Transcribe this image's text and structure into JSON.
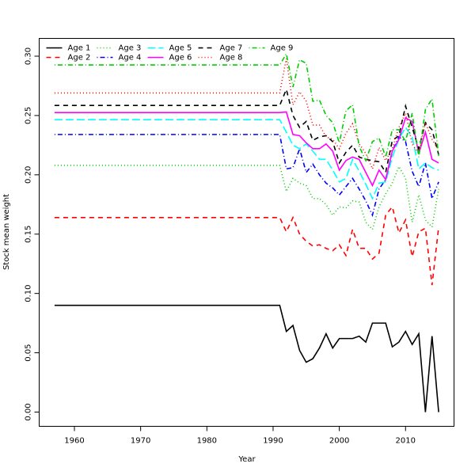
{
  "chart_data": {
    "type": "line",
    "x_label": "Year",
    "y_label": "Stock mean weight",
    "x": [
      1957,
      1958,
      1959,
      1960,
      1961,
      1962,
      1963,
      1964,
      1965,
      1966,
      1967,
      1968,
      1969,
      1970,
      1971,
      1972,
      1973,
      1974,
      1975,
      1976,
      1977,
      1978,
      1979,
      1980,
      1981,
      1982,
      1983,
      1984,
      1985,
      1986,
      1987,
      1988,
      1989,
      1990,
      1991,
      1992,
      1993,
      1994,
      1995,
      1996,
      1997,
      1998,
      1999,
      2000,
      2001,
      2002,
      2003,
      2004,
      2005,
      2006,
      2007,
      2008,
      2009,
      2010,
      2011,
      2012,
      2013,
      2014,
      2015
    ],
    "xlim": [
      1954.68,
      2017.32
    ],
    "xticks": [
      1960,
      1970,
      1980,
      1990,
      2000,
      2010
    ],
    "ylim": [
      -0.012,
      0.315
    ],
    "yticks": [
      {
        "value": 0,
        "label": "0.00"
      },
      {
        "value": 0.05,
        "label": "0.05"
      },
      {
        "value": 0.1,
        "label": "0.10"
      },
      {
        "value": 0.15,
        "label": "0.15"
      },
      {
        "value": 0.2,
        "label": "0.20"
      },
      {
        "value": 0.25,
        "label": "0.25"
      },
      {
        "value": 0.3,
        "label": "0.30"
      }
    ],
    "legend": "top-left",
    "series": [
      {
        "name": "Age 1",
        "color": "#000000",
        "linestyle": "solid",
        "values": [
          0.09,
          0.09,
          0.09,
          0.09,
          0.09,
          0.09,
          0.09,
          0.09,
          0.09,
          0.09,
          0.09,
          0.09,
          0.09,
          0.09,
          0.09,
          0.09,
          0.09,
          0.09,
          0.09,
          0.09,
          0.09,
          0.09,
          0.09,
          0.09,
          0.09,
          0.09,
          0.09,
          0.09,
          0.09,
          0.09,
          0.09,
          0.09,
          0.09,
          0.09,
          0.09,
          0.068,
          0.073,
          0.052,
          0.042,
          0.045,
          0.054,
          0.066,
          0.054,
          0.062,
          0.062,
          0.062,
          0.064,
          0.059,
          0.075,
          0.075,
          0.075,
          0.055,
          0.059,
          0.068,
          0.057,
          0.066,
          0.0,
          0.064,
          0.0
        ]
      },
      {
        "name": "Age 2",
        "color": "#ff0000",
        "linestyle": "dashed",
        "values": [
          0.164,
          0.164,
          0.164,
          0.164,
          0.164,
          0.164,
          0.164,
          0.164,
          0.164,
          0.164,
          0.164,
          0.164,
          0.164,
          0.164,
          0.164,
          0.164,
          0.164,
          0.164,
          0.164,
          0.164,
          0.164,
          0.164,
          0.164,
          0.164,
          0.164,
          0.164,
          0.164,
          0.164,
          0.164,
          0.164,
          0.164,
          0.164,
          0.164,
          0.164,
          0.164,
          0.152,
          0.164,
          0.15,
          0.144,
          0.14,
          0.141,
          0.138,
          0.136,
          0.141,
          0.132,
          0.154,
          0.138,
          0.138,
          0.129,
          0.134,
          0.166,
          0.173,
          0.151,
          0.162,
          0.131,
          0.152,
          0.155,
          0.107,
          0.156
        ]
      },
      {
        "name": "Age 3",
        "color": "#00cd00",
        "linestyle": "dotted",
        "values": [
          0.208,
          0.208,
          0.208,
          0.208,
          0.208,
          0.208,
          0.208,
          0.208,
          0.208,
          0.208,
          0.208,
          0.208,
          0.208,
          0.208,
          0.208,
          0.208,
          0.208,
          0.208,
          0.208,
          0.208,
          0.208,
          0.208,
          0.208,
          0.208,
          0.208,
          0.208,
          0.208,
          0.208,
          0.208,
          0.208,
          0.208,
          0.208,
          0.208,
          0.208,
          0.208,
          0.186,
          0.197,
          0.193,
          0.191,
          0.18,
          0.18,
          0.175,
          0.166,
          0.173,
          0.172,
          0.178,
          0.177,
          0.16,
          0.154,
          0.173,
          0.184,
          0.193,
          0.207,
          0.197,
          0.16,
          0.183,
          0.162,
          0.156,
          0.188
        ]
      },
      {
        "name": "Age 4",
        "color": "#0000ff",
        "linestyle": "dotdash",
        "values": [
          0.234,
          0.234,
          0.234,
          0.234,
          0.234,
          0.234,
          0.234,
          0.234,
          0.234,
          0.234,
          0.234,
          0.234,
          0.234,
          0.234,
          0.234,
          0.234,
          0.234,
          0.234,
          0.234,
          0.234,
          0.234,
          0.234,
          0.234,
          0.234,
          0.234,
          0.234,
          0.234,
          0.234,
          0.234,
          0.234,
          0.234,
          0.234,
          0.234,
          0.234,
          0.234,
          0.205,
          0.206,
          0.222,
          0.202,
          0.209,
          0.2,
          0.193,
          0.189,
          0.183,
          0.19,
          0.197,
          0.188,
          0.178,
          0.166,
          0.188,
          0.196,
          0.22,
          0.232,
          0.228,
          0.203,
          0.19,
          0.21,
          0.18,
          0.194
        ]
      },
      {
        "name": "Age 5",
        "color": "#00ffff",
        "linestyle": "longdash",
        "values": [
          0.2465,
          0.2465,
          0.2465,
          0.2465,
          0.2465,
          0.2465,
          0.2465,
          0.2465,
          0.2465,
          0.2465,
          0.2465,
          0.2465,
          0.2465,
          0.2465,
          0.2465,
          0.2465,
          0.2465,
          0.2465,
          0.2465,
          0.2465,
          0.2465,
          0.2465,
          0.2465,
          0.2465,
          0.2465,
          0.2465,
          0.2465,
          0.2465,
          0.2465,
          0.2465,
          0.2465,
          0.2465,
          0.2465,
          0.2465,
          0.2465,
          0.236,
          0.225,
          0.222,
          0.226,
          0.22,
          0.213,
          0.213,
          0.204,
          0.194,
          0.197,
          0.213,
          0.203,
          0.192,
          0.18,
          0.193,
          0.194,
          0.215,
          0.23,
          0.24,
          0.232,
          0.205,
          0.21,
          0.206,
          0.204
        ]
      },
      {
        "name": "Age 6",
        "color": "#ff00ff",
        "linestyle": "solid",
        "values": [
          0.2525,
          0.2525,
          0.2525,
          0.2525,
          0.2525,
          0.2525,
          0.2525,
          0.2525,
          0.2525,
          0.2525,
          0.2525,
          0.2525,
          0.2525,
          0.2525,
          0.2525,
          0.2525,
          0.2525,
          0.2525,
          0.2525,
          0.2525,
          0.2525,
          0.2525,
          0.2525,
          0.2525,
          0.2525,
          0.2525,
          0.2525,
          0.2525,
          0.2525,
          0.2525,
          0.2525,
          0.2525,
          0.2525,
          0.2525,
          0.2525,
          0.253,
          0.234,
          0.233,
          0.227,
          0.222,
          0.222,
          0.226,
          0.22,
          0.204,
          0.212,
          0.215,
          0.213,
          0.202,
          0.191,
          0.204,
          0.196,
          0.22,
          0.23,
          0.248,
          0.245,
          0.218,
          0.236,
          0.213,
          0.21
        ]
      },
      {
        "name": "Age 7",
        "color": "#000000",
        "linestyle": "dashed",
        "values": [
          0.2585,
          0.2585,
          0.2585,
          0.2585,
          0.2585,
          0.2585,
          0.2585,
          0.2585,
          0.2585,
          0.2585,
          0.2585,
          0.2585,
          0.2585,
          0.2585,
          0.2585,
          0.2585,
          0.2585,
          0.2585,
          0.2585,
          0.2585,
          0.2585,
          0.2585,
          0.2585,
          0.2585,
          0.2585,
          0.2585,
          0.2585,
          0.2585,
          0.2585,
          0.2585,
          0.2585,
          0.2585,
          0.2585,
          0.2585,
          0.2585,
          0.272,
          0.25,
          0.24,
          0.245,
          0.229,
          0.232,
          0.233,
          0.228,
          0.21,
          0.219,
          0.225,
          0.215,
          0.213,
          0.212,
          0.211,
          0.202,
          0.229,
          0.233,
          0.258,
          0.24,
          0.222,
          0.244,
          0.238,
          0.217
        ]
      },
      {
        "name": "Age 8",
        "color": "#ff0000",
        "linestyle": "dotted",
        "values": [
          0.269,
          0.269,
          0.269,
          0.269,
          0.269,
          0.269,
          0.269,
          0.269,
          0.269,
          0.269,
          0.269,
          0.269,
          0.269,
          0.269,
          0.269,
          0.269,
          0.269,
          0.269,
          0.269,
          0.269,
          0.269,
          0.269,
          0.269,
          0.269,
          0.269,
          0.269,
          0.269,
          0.269,
          0.269,
          0.269,
          0.269,
          0.269,
          0.269,
          0.269,
          0.269,
          0.298,
          0.259,
          0.27,
          0.262,
          0.242,
          0.242,
          0.232,
          0.23,
          0.222,
          0.235,
          0.243,
          0.226,
          0.218,
          0.205,
          0.223,
          0.212,
          0.222,
          0.24,
          0.252,
          0.226,
          0.218,
          0.244,
          0.23,
          0.221
        ]
      },
      {
        "name": "Age 9",
        "color": "#00cd00",
        "linestyle": "dotdash",
        "values": [
          0.2926,
          0.2926,
          0.2926,
          0.2926,
          0.2926,
          0.2926,
          0.2926,
          0.2926,
          0.2926,
          0.2926,
          0.2926,
          0.2926,
          0.2926,
          0.2926,
          0.2926,
          0.2926,
          0.2926,
          0.2926,
          0.2926,
          0.2926,
          0.2926,
          0.2926,
          0.2926,
          0.2926,
          0.2926,
          0.2926,
          0.2926,
          0.2926,
          0.2926,
          0.2926,
          0.2926,
          0.2926,
          0.2926,
          0.2926,
          0.2926,
          0.302,
          0.274,
          0.297,
          0.294,
          0.262,
          0.263,
          0.25,
          0.244,
          0.227,
          0.254,
          0.259,
          0.224,
          0.212,
          0.228,
          0.231,
          0.215,
          0.238,
          0.238,
          0.228,
          0.252,
          0.215,
          0.255,
          0.264,
          0.216
        ]
      }
    ]
  }
}
